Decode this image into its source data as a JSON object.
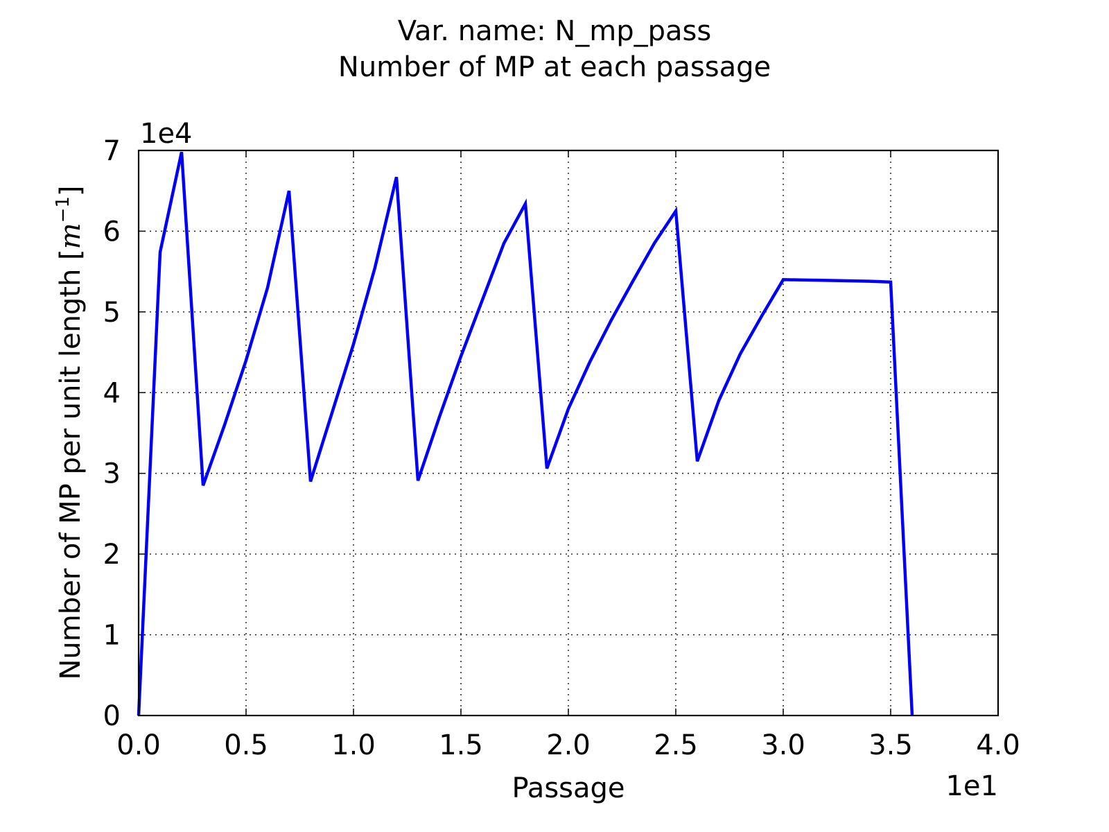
{
  "chart_data": {
    "type": "line",
    "title_lines": [
      "Var. name: N_mp_pass",
      "Number of MP at each passage"
    ],
    "xlabel": "Passage",
    "ylabel_main": "Number of MP per unit length [",
    "ylabel_unit_base": "m",
    "ylabel_unit_exp": "−1",
    "ylabel_close": "]",
    "x_offset_label": "1e1",
    "y_offset_label": "1e4",
    "x_tick_labels": [
      "0.0",
      "0.5",
      "1.0",
      "1.5",
      "2.0",
      "2.5",
      "3.0",
      "3.5",
      "4.0"
    ],
    "y_tick_labels": [
      "0",
      "1",
      "2",
      "3",
      "4",
      "5",
      "6",
      "7"
    ],
    "xlim": [
      0,
      40
    ],
    "ylim": [
      0,
      70000
    ],
    "grid": true,
    "line_color": "#0000ff",
    "series": [
      {
        "x": [
          0,
          1,
          2,
          3,
          4,
          5,
          6,
          7,
          8,
          9,
          10,
          11,
          12,
          13,
          14,
          15,
          16,
          17,
          18,
          19,
          20,
          21,
          22,
          23,
          24,
          25,
          26,
          27,
          28,
          29,
          30,
          31,
          32,
          33,
          34,
          35,
          36
        ],
        "values": [
          0,
          57400,
          69800,
          28500,
          36000,
          44000,
          53000,
          65000,
          29000,
          37500,
          46000,
          55500,
          66700,
          29100,
          37000,
          44500,
          51500,
          58500,
          63400,
          30600,
          38000,
          43800,
          49000,
          53800,
          58500,
          62500,
          31500,
          39000,
          44800,
          49500,
          54000,
          53950,
          53900,
          53850,
          53800,
          53700,
          0
        ]
      }
    ]
  }
}
